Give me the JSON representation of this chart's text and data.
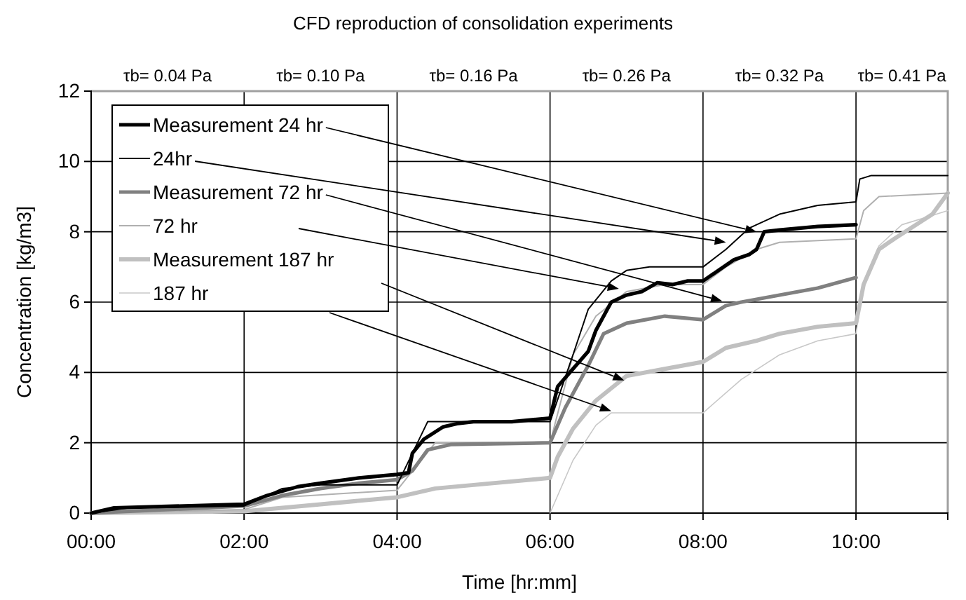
{
  "chart_data": {
    "type": "line",
    "title": "CFD reproduction of consolidation experiments",
    "xlabel": "Time [hr:mm]",
    "ylabel": "Concentration [kg/m3]",
    "xlim": [
      0,
      11.2
    ],
    "ylim": [
      0,
      12
    ],
    "xticks": [
      {
        "value": 0,
        "label": "00:00"
      },
      {
        "value": 2,
        "label": "02:00"
      },
      {
        "value": 4,
        "label": "04:00"
      },
      {
        "value": 6,
        "label": "06:00"
      },
      {
        "value": 8,
        "label": "08:00"
      },
      {
        "value": 10,
        "label": "10:00"
      }
    ],
    "yticks": [
      0,
      2,
      4,
      6,
      8,
      10,
      12
    ],
    "annotations": [
      "τb= 0.04 Pa",
      "τb= 0.10 Pa",
      "τb= 0.16 Pa",
      "τb= 0.26 Pa",
      "τb= 0.32 Pa",
      "τb= 0.41 Pa"
    ],
    "grid": true,
    "legend": "top left",
    "marker": "none",
    "line_style": "solid",
    "series": [
      {
        "name": "Measurement 24 hr",
        "color": "#000000",
        "x": [
          0,
          0.3,
          2,
          2.3,
          2.7,
          3,
          3.5,
          4,
          4.15,
          4.2,
          4.35,
          4.6,
          4.8,
          5,
          5.5,
          6,
          6.1,
          6.3,
          6.5,
          6.6,
          6.8,
          7,
          7.2,
          7.4,
          7.6,
          7.8,
          8,
          8.2,
          8.4,
          8.6,
          8.7,
          8.8,
          9,
          9.5,
          10
        ],
        "values": [
          0,
          0.15,
          0.25,
          0.5,
          0.75,
          0.85,
          1,
          1.1,
          1.15,
          1.7,
          2.1,
          2.45,
          2.55,
          2.6,
          2.6,
          2.7,
          3.6,
          4.1,
          4.6,
          5.2,
          6,
          6.2,
          6.3,
          6.55,
          6.5,
          6.6,
          6.6,
          6.9,
          7.2,
          7.35,
          7.5,
          8,
          8.05,
          8.15,
          8.2
        ]
      },
      {
        "name": "24hr",
        "color": "#000000",
        "x": [
          0,
          0.5,
          2,
          2.3,
          2.5,
          3,
          4,
          4.4,
          6,
          6.3,
          6.5,
          6.8,
          7,
          7.3,
          8,
          8.3,
          8.6,
          9,
          9.5,
          10,
          10.05,
          10.2,
          11.2
        ],
        "values": [
          0,
          0.15,
          0.2,
          0.5,
          0.7,
          0.8,
          0.8,
          2.6,
          2.6,
          4.5,
          5.8,
          6.6,
          6.9,
          7,
          7,
          7.5,
          8.1,
          8.5,
          8.75,
          8.85,
          9.5,
          9.6,
          9.6
        ]
      },
      {
        "name": "Measurement 72 hr",
        "color": "#808080",
        "x": [
          0,
          2,
          2.5,
          3,
          3.5,
          4,
          4.2,
          4.4,
          4.7,
          6,
          6.2,
          6.5,
          6.7,
          7,
          7.5,
          8,
          8.3,
          8.5,
          9,
          9.5,
          10
        ],
        "values": [
          0,
          0.2,
          0.5,
          0.7,
          0.85,
          0.95,
          1.2,
          1.8,
          1.95,
          2,
          3,
          4.2,
          5.1,
          5.4,
          5.6,
          5.5,
          5.9,
          6,
          6.2,
          6.4,
          6.7
        ]
      },
      {
        "name": "72 hr",
        "color": "#b0b0b0",
        "x": [
          0,
          2,
          2.5,
          4,
          4.2,
          4.5,
          6,
          6.3,
          6.6,
          7,
          7.5,
          8,
          8.3,
          8.7,
          9,
          10,
          10.1,
          10.3,
          11.2
        ],
        "values": [
          0,
          0.1,
          0.45,
          0.65,
          1.2,
          2,
          2,
          4.5,
          5.6,
          6.3,
          6.5,
          6.5,
          7,
          7.5,
          7.7,
          7.8,
          8.6,
          9,
          9.1
        ]
      },
      {
        "name": "Measurement 187 hr",
        "color": "#c0c0c0",
        "x": [
          0,
          2,
          3,
          4,
          4.5,
          5,
          6,
          6.1,
          6.3,
          6.6,
          7,
          7.5,
          8,
          8.3,
          8.7,
          9,
          9.5,
          10,
          10.1,
          10.3,
          10.5,
          11,
          11.2
        ],
        "values": [
          0,
          0.05,
          0.25,
          0.45,
          0.7,
          0.8,
          1,
          1.6,
          2.4,
          3.2,
          3.9,
          4.1,
          4.3,
          4.7,
          4.9,
          5.1,
          5.3,
          5.4,
          6.5,
          7.5,
          7.8,
          8.5,
          9.1
        ]
      },
      {
        "name": "187 hr",
        "color": "#c8c8c8",
        "x": [
          6,
          6.3,
          6.6,
          6.8,
          8,
          8.5,
          9,
          9.5,
          10,
          10.1,
          10.3,
          10.6,
          11.2
        ],
        "values": [
          0,
          1.5,
          2.5,
          2.85,
          2.85,
          3.8,
          4.5,
          4.9,
          5.1,
          6.5,
          7.6,
          8.2,
          8.6
        ]
      }
    ]
  }
}
